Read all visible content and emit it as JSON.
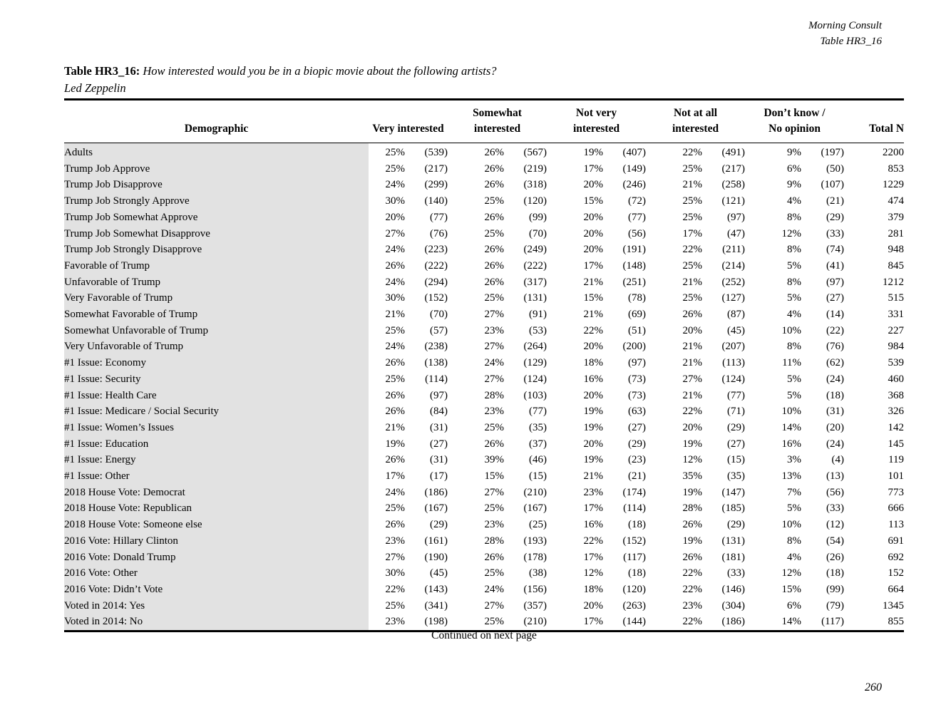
{
  "page_header": {
    "org": "Morning Consult",
    "table_ref": "Table HR3_16"
  },
  "title": {
    "label": "Table HR3_16:",
    "question": "How interested would you be in a biopic movie about the following artists?",
    "subject": "Led Zeppelin"
  },
  "table": {
    "columns": {
      "demographic": "Demographic",
      "groups": [
        {
          "line1": "",
          "line2": "Very interested"
        },
        {
          "line1": "Somewhat",
          "line2": "interested"
        },
        {
          "line1": "Not very",
          "line2": "interested"
        },
        {
          "line1": "Not at all",
          "line2": "interested"
        },
        {
          "line1": "Don’t know /",
          "line2": "No opinion"
        }
      ],
      "total": "Total N"
    },
    "rows": [
      {
        "demographic": "Adults",
        "cells": [
          [
            "25%",
            "(539)"
          ],
          [
            "26%",
            "(567)"
          ],
          [
            "19%",
            "(407)"
          ],
          [
            "22%",
            "(491)"
          ],
          [
            "9%",
            "(197)"
          ]
        ],
        "total": "2200"
      },
      {
        "demographic": "Trump Job Approve",
        "cells": [
          [
            "25%",
            "(217)"
          ],
          [
            "26%",
            "(219)"
          ],
          [
            "17%",
            "(149)"
          ],
          [
            "25%",
            "(217)"
          ],
          [
            "6%",
            "(50)"
          ]
        ],
        "total": "853"
      },
      {
        "demographic": "Trump Job Disapprove",
        "cells": [
          [
            "24%",
            "(299)"
          ],
          [
            "26%",
            "(318)"
          ],
          [
            "20%",
            "(246)"
          ],
          [
            "21%",
            "(258)"
          ],
          [
            "9%",
            "(107)"
          ]
        ],
        "total": "1229"
      },
      {
        "demographic": "Trump Job Strongly Approve",
        "cells": [
          [
            "30%",
            "(140)"
          ],
          [
            "25%",
            "(120)"
          ],
          [
            "15%",
            "(72)"
          ],
          [
            "25%",
            "(121)"
          ],
          [
            "4%",
            "(21)"
          ]
        ],
        "total": "474"
      },
      {
        "demographic": "Trump Job Somewhat Approve",
        "cells": [
          [
            "20%",
            "(77)"
          ],
          [
            "26%",
            "(99)"
          ],
          [
            "20%",
            "(77)"
          ],
          [
            "25%",
            "(97)"
          ],
          [
            "8%",
            "(29)"
          ]
        ],
        "total": "379"
      },
      {
        "demographic": "Trump Job Somewhat Disapprove",
        "cells": [
          [
            "27%",
            "(76)"
          ],
          [
            "25%",
            "(70)"
          ],
          [
            "20%",
            "(56)"
          ],
          [
            "17%",
            "(47)"
          ],
          [
            "12%",
            "(33)"
          ]
        ],
        "total": "281"
      },
      {
        "demographic": "Trump Job Strongly Disapprove",
        "cells": [
          [
            "24%",
            "(223)"
          ],
          [
            "26%",
            "(249)"
          ],
          [
            "20%",
            "(191)"
          ],
          [
            "22%",
            "(211)"
          ],
          [
            "8%",
            "(74)"
          ]
        ],
        "total": "948"
      },
      {
        "demographic": "Favorable of Trump",
        "cells": [
          [
            "26%",
            "(222)"
          ],
          [
            "26%",
            "(222)"
          ],
          [
            "17%",
            "(148)"
          ],
          [
            "25%",
            "(214)"
          ],
          [
            "5%",
            "(41)"
          ]
        ],
        "total": "845"
      },
      {
        "demographic": "Unfavorable of Trump",
        "cells": [
          [
            "24%",
            "(294)"
          ],
          [
            "26%",
            "(317)"
          ],
          [
            "21%",
            "(251)"
          ],
          [
            "21%",
            "(252)"
          ],
          [
            "8%",
            "(97)"
          ]
        ],
        "total": "1212"
      },
      {
        "demographic": "Very Favorable of Trump",
        "cells": [
          [
            "30%",
            "(152)"
          ],
          [
            "25%",
            "(131)"
          ],
          [
            "15%",
            "(78)"
          ],
          [
            "25%",
            "(127)"
          ],
          [
            "5%",
            "(27)"
          ]
        ],
        "total": "515"
      },
      {
        "demographic": "Somewhat Favorable of Trump",
        "cells": [
          [
            "21%",
            "(70)"
          ],
          [
            "27%",
            "(91)"
          ],
          [
            "21%",
            "(69)"
          ],
          [
            "26%",
            "(87)"
          ],
          [
            "4%",
            "(14)"
          ]
        ],
        "total": "331"
      },
      {
        "demographic": "Somewhat Unfavorable of Trump",
        "cells": [
          [
            "25%",
            "(57)"
          ],
          [
            "23%",
            "(53)"
          ],
          [
            "22%",
            "(51)"
          ],
          [
            "20%",
            "(45)"
          ],
          [
            "10%",
            "(22)"
          ]
        ],
        "total": "227"
      },
      {
        "demographic": "Very Unfavorable of Trump",
        "cells": [
          [
            "24%",
            "(238)"
          ],
          [
            "27%",
            "(264)"
          ],
          [
            "20%",
            "(200)"
          ],
          [
            "21%",
            "(207)"
          ],
          [
            "8%",
            "(76)"
          ]
        ],
        "total": "984"
      },
      {
        "demographic": "#1 Issue: Economy",
        "cells": [
          [
            "26%",
            "(138)"
          ],
          [
            "24%",
            "(129)"
          ],
          [
            "18%",
            "(97)"
          ],
          [
            "21%",
            "(113)"
          ],
          [
            "11%",
            "(62)"
          ]
        ],
        "total": "539"
      },
      {
        "demographic": "#1 Issue: Security",
        "cells": [
          [
            "25%",
            "(114)"
          ],
          [
            "27%",
            "(124)"
          ],
          [
            "16%",
            "(73)"
          ],
          [
            "27%",
            "(124)"
          ],
          [
            "5%",
            "(24)"
          ]
        ],
        "total": "460"
      },
      {
        "demographic": "#1 Issue: Health Care",
        "cells": [
          [
            "26%",
            "(97)"
          ],
          [
            "28%",
            "(103)"
          ],
          [
            "20%",
            "(73)"
          ],
          [
            "21%",
            "(77)"
          ],
          [
            "5%",
            "(18)"
          ]
        ],
        "total": "368"
      },
      {
        "demographic": "#1 Issue: Medicare / Social Security",
        "cells": [
          [
            "26%",
            "(84)"
          ],
          [
            "23%",
            "(77)"
          ],
          [
            "19%",
            "(63)"
          ],
          [
            "22%",
            "(71)"
          ],
          [
            "10%",
            "(31)"
          ]
        ],
        "total": "326"
      },
      {
        "demographic": "#1 Issue: Women’s Issues",
        "cells": [
          [
            "21%",
            "(31)"
          ],
          [
            "25%",
            "(35)"
          ],
          [
            "19%",
            "(27)"
          ],
          [
            "20%",
            "(29)"
          ],
          [
            "14%",
            "(20)"
          ]
        ],
        "total": "142"
      },
      {
        "demographic": "#1 Issue: Education",
        "cells": [
          [
            "19%",
            "(27)"
          ],
          [
            "26%",
            "(37)"
          ],
          [
            "20%",
            "(29)"
          ],
          [
            "19%",
            "(27)"
          ],
          [
            "16%",
            "(24)"
          ]
        ],
        "total": "145"
      },
      {
        "demographic": "#1 Issue: Energy",
        "cells": [
          [
            "26%",
            "(31)"
          ],
          [
            "39%",
            "(46)"
          ],
          [
            "19%",
            "(23)"
          ],
          [
            "12%",
            "(15)"
          ],
          [
            "3%",
            "(4)"
          ]
        ],
        "total": "119"
      },
      {
        "demographic": "#1 Issue: Other",
        "cells": [
          [
            "17%",
            "(17)"
          ],
          [
            "15%",
            "(15)"
          ],
          [
            "21%",
            "(21)"
          ],
          [
            "35%",
            "(35)"
          ],
          [
            "13%",
            "(13)"
          ]
        ],
        "total": "101"
      },
      {
        "demographic": "2018 House Vote: Democrat",
        "cells": [
          [
            "24%",
            "(186)"
          ],
          [
            "27%",
            "(210)"
          ],
          [
            "23%",
            "(174)"
          ],
          [
            "19%",
            "(147)"
          ],
          [
            "7%",
            "(56)"
          ]
        ],
        "total": "773"
      },
      {
        "demographic": "2018 House Vote: Republican",
        "cells": [
          [
            "25%",
            "(167)"
          ],
          [
            "25%",
            "(167)"
          ],
          [
            "17%",
            "(114)"
          ],
          [
            "28%",
            "(185)"
          ],
          [
            "5%",
            "(33)"
          ]
        ],
        "total": "666"
      },
      {
        "demographic": "2018 House Vote: Someone else",
        "cells": [
          [
            "26%",
            "(29)"
          ],
          [
            "23%",
            "(25)"
          ],
          [
            "16%",
            "(18)"
          ],
          [
            "26%",
            "(29)"
          ],
          [
            "10%",
            "(12)"
          ]
        ],
        "total": "113"
      },
      {
        "demographic": "2016 Vote: Hillary Clinton",
        "cells": [
          [
            "23%",
            "(161)"
          ],
          [
            "28%",
            "(193)"
          ],
          [
            "22%",
            "(152)"
          ],
          [
            "19%",
            "(131)"
          ],
          [
            "8%",
            "(54)"
          ]
        ],
        "total": "691"
      },
      {
        "demographic": "2016 Vote: Donald Trump",
        "cells": [
          [
            "27%",
            "(190)"
          ],
          [
            "26%",
            "(178)"
          ],
          [
            "17%",
            "(117)"
          ],
          [
            "26%",
            "(181)"
          ],
          [
            "4%",
            "(26)"
          ]
        ],
        "total": "692"
      },
      {
        "demographic": "2016 Vote: Other",
        "cells": [
          [
            "30%",
            "(45)"
          ],
          [
            "25%",
            "(38)"
          ],
          [
            "12%",
            "(18)"
          ],
          [
            "22%",
            "(33)"
          ],
          [
            "12%",
            "(18)"
          ]
        ],
        "total": "152"
      },
      {
        "demographic": "2016 Vote: Didn’t Vote",
        "cells": [
          [
            "22%",
            "(143)"
          ],
          [
            "24%",
            "(156)"
          ],
          [
            "18%",
            "(120)"
          ],
          [
            "22%",
            "(146)"
          ],
          [
            "15%",
            "(99)"
          ]
        ],
        "total": "664"
      },
      {
        "demographic": "Voted in 2014: Yes",
        "cells": [
          [
            "25%",
            "(341)"
          ],
          [
            "27%",
            "(357)"
          ],
          [
            "20%",
            "(263)"
          ],
          [
            "23%",
            "(304)"
          ],
          [
            "6%",
            "(79)"
          ]
        ],
        "total": "1345"
      },
      {
        "demographic": "Voted in 2014: No",
        "cells": [
          [
            "23%",
            "(198)"
          ],
          [
            "25%",
            "(210)"
          ],
          [
            "17%",
            "(144)"
          ],
          [
            "22%",
            "(186)"
          ],
          [
            "14%",
            "(117)"
          ]
        ],
        "total": "855"
      }
    ]
  },
  "footer": {
    "continued": "Continued on next page",
    "page_number": "260"
  }
}
